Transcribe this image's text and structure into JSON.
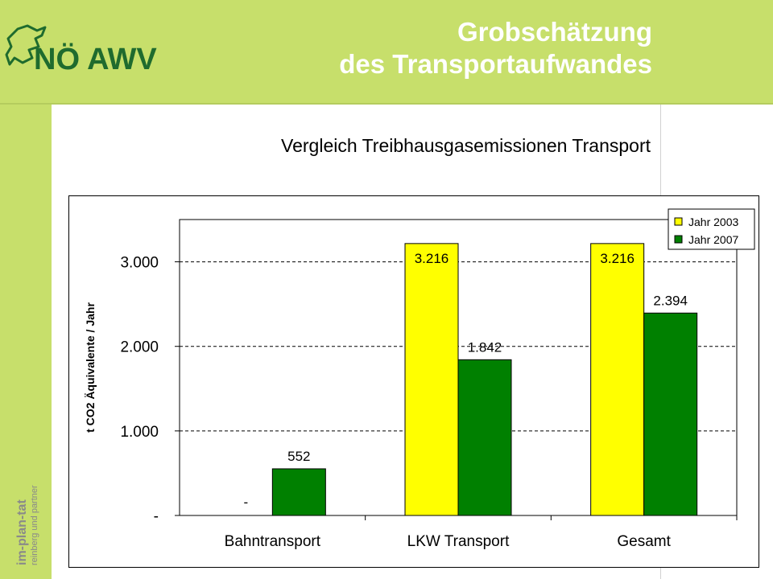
{
  "header": {
    "logo_text": "NÖ AWV",
    "title_line1": "Grobschätzung",
    "title_line2": "des Transportaufwandes",
    "subtitle": "Vergleich Treibhausgasemissionen Transport"
  },
  "sidebar": {
    "brand_line1": "im-plan-tat",
    "brand_line2": "reinberg und partner"
  },
  "colors": {
    "header_bg": "#c7df6b",
    "series_2003": "#ffff00",
    "series_2007": "#008000"
  },
  "chart_data": {
    "type": "bar",
    "title": "",
    "xlabel": "",
    "ylabel": "t CO2 Äquivalente / Jahr",
    "categories": [
      "Bahntransport",
      "LKW Transport",
      "Gesamt"
    ],
    "series": [
      {
        "name": "Jahr 2003",
        "values": [
          0,
          3216,
          3216
        ],
        "labels": [
          "-",
          "3.216",
          "3.216"
        ]
      },
      {
        "name": "Jahr 2007",
        "values": [
          552,
          1842,
          2394
        ],
        "labels": [
          "552",
          "1.842",
          "2.394"
        ]
      }
    ],
    "ylim": [
      0,
      3500
    ],
    "yticks": [
      0,
      1000,
      2000,
      3000
    ],
    "ytick_labels": [
      "-",
      "1.000",
      "2.000",
      "3.000"
    ],
    "grid": true,
    "legend_position": "top-right"
  }
}
